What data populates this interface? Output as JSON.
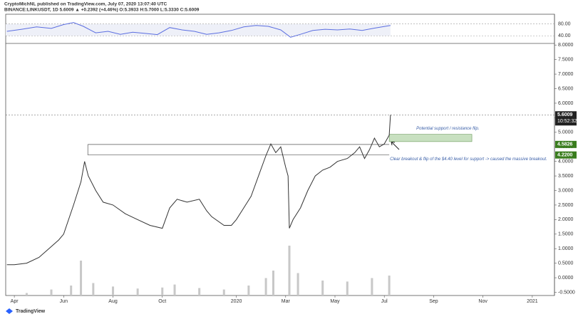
{
  "chart_data": {
    "type": "line",
    "title": "CryptoMichNL published on TradingView.com, July 07, 2020 13:07:40 UTC",
    "subtitle": "BINANCE:LINKUSDT, 1D 5.6009 ▲ +0.2392 (+4.46%) O:5.3933 H:5.7000 L:5.3330 C:5.6009",
    "footer": "TradingView",
    "color": "#333333",
    "x": [
      -0.3,
      0,
      0.5,
      1,
      1.4,
      1.8,
      2,
      2.4,
      2.7,
      2.85,
      3,
      3.3,
      3.6,
      4,
      4.5,
      5,
      5.5,
      6,
      6.3,
      6.6,
      7,
      7.5,
      7.8,
      8,
      8.5,
      8.8,
      9,
      9.3,
      9.6,
      9.9,
      10.2,
      10.4,
      10.6,
      10.8,
      11,
      11.1,
      11.15,
      11.3,
      11.6,
      11.9,
      12.2,
      12.5,
      12.8,
      13.1,
      13.5,
      13.8,
      14,
      14.2,
      14.4,
      14.6,
      14.8,
      15,
      15.2,
      15.25
    ],
    "values": [
      0.45,
      0.45,
      0.5,
      0.7,
      1.0,
      1.3,
      1.5,
      2.5,
      3.3,
      4.0,
      3.5,
      3.0,
      2.6,
      2.5,
      2.2,
      2.0,
      1.8,
      1.7,
      2.4,
      2.7,
      2.6,
      2.7,
      2.3,
      2.1,
      1.8,
      1.8,
      2.0,
      2.4,
      2.8,
      3.5,
      4.2,
      4.6,
      4.3,
      4.5,
      3.8,
      3.5,
      1.7,
      2.0,
      2.4,
      3.0,
      3.5,
      3.7,
      3.8,
      4.0,
      4.1,
      4.3,
      4.5,
      4.1,
      4.4,
      4.8,
      4.5,
      4.6,
      4.9,
      5.6
    ],
    "xlim": [
      -0.35,
      21.9
    ],
    "xticks": [
      {
        "value": 0,
        "label": "Apr"
      },
      {
        "value": 2,
        "label": "Jun"
      },
      {
        "value": 4,
        "label": "Aug"
      },
      {
        "value": 6,
        "label": "Oct"
      },
      {
        "value": 9,
        "label": "2020"
      },
      {
        "value": 11,
        "label": "Mar"
      },
      {
        "value": 13,
        "label": "May"
      },
      {
        "value": 15,
        "label": "Jul"
      },
      {
        "value": 17,
        "label": "Sep"
      },
      {
        "value": 19,
        "label": "Nov"
      },
      {
        "value": 21,
        "label": "2021"
      }
    ],
    "ylim": [
      -0.61,
      8.03
    ],
    "yticks": [
      {
        "value": 8,
        "label": "8.0000"
      },
      {
        "value": 7.5,
        "label": "7.5000"
      },
      {
        "value": 7,
        "label": "7.0000"
      },
      {
        "value": 6.5,
        "label": "6.5000"
      },
      {
        "value": 6,
        "label": "6.0000"
      },
      {
        "value": 5.5,
        "label": "5.5000"
      },
      {
        "value": 5,
        "label": "5.0000"
      },
      {
        "value": 4.5,
        "label": "4.5000"
      },
      {
        "value": 4,
        "label": "4.0000"
      },
      {
        "value": 3.5,
        "label": "3.5000"
      },
      {
        "value": 3,
        "label": "3.0000"
      },
      {
        "value": 2.5,
        "label": "2.5000"
      },
      {
        "value": 2,
        "label": "2.0000"
      },
      {
        "value": 1.5,
        "label": "1.5000"
      },
      {
        "value": 1,
        "label": "1.0000"
      },
      {
        "value": 0.5,
        "label": "0.5000"
      },
      {
        "value": 0,
        "label": "0.0000"
      },
      {
        "value": -0.5,
        "label": "-0.5000"
      }
    ],
    "last_price": {
      "value": 5.6009,
      "label": "5.6009",
      "countdown": "10:52:32"
    },
    "levels": [
      {
        "value": 4.5826,
        "label": "4.5826",
        "x": [
          2.98,
          15.2
        ]
      },
      {
        "value": 4.22,
        "label": "4.2200",
        "x": [
          2.98,
          15.2
        ]
      }
    ],
    "zone": {
      "x": [
        15.2,
        18.55
      ],
      "y": [
        4.68,
        4.93
      ],
      "color": "#c8e0c0"
    },
    "annotations": [
      "Potential support / resistance flip.",
      "Clear breakout & flip of the $4.40 level for support -> caused the massive breakout."
    ],
    "volume": {
      "color": "#c8c8c8",
      "ylim": [
        0,
        100
      ],
      "x": [
        0.5,
        1.5,
        2.3,
        2.7,
        3.2,
        4,
        5,
        6,
        6.5,
        7.5,
        8.5,
        9.5,
        10.2,
        10.5,
        11.15,
        11.5,
        12.5,
        13.5,
        14.5,
        15.2
      ],
      "values": [
        5,
        12,
        20,
        70,
        25,
        18,
        14,
        16,
        22,
        15,
        12,
        20,
        35,
        50,
        100,
        45,
        30,
        28,
        35,
        40
      ]
    },
    "rsi": {
      "color": "#5b6ee0",
      "ylim": [
        16.5,
        110.6
      ],
      "yticks": [
        {
          "value": 80,
          "label": "80.00"
        },
        {
          "value": 40,
          "label": "40.00"
        }
      ],
      "x": [
        -0.3,
        0.3,
        0.9,
        1.5,
        2,
        2.4,
        2.8,
        3.3,
        3.8,
        4.3,
        4.8,
        5.3,
        5.8,
        6.3,
        6.8,
        7.3,
        7.8,
        8.3,
        8.8,
        9.3,
        9.8,
        10.3,
        10.8,
        11.2,
        11.6,
        12.1,
        12.6,
        13.1,
        13.6,
        14.1,
        14.6,
        15.25
      ],
      "values": [
        55,
        62,
        70,
        65,
        78,
        85,
        72,
        50,
        55,
        45,
        52,
        48,
        44,
        68,
        60,
        55,
        45,
        50,
        58,
        70,
        75,
        72,
        60,
        35,
        45,
        58,
        62,
        60,
        63,
        58,
        66,
        75
      ]
    }
  }
}
